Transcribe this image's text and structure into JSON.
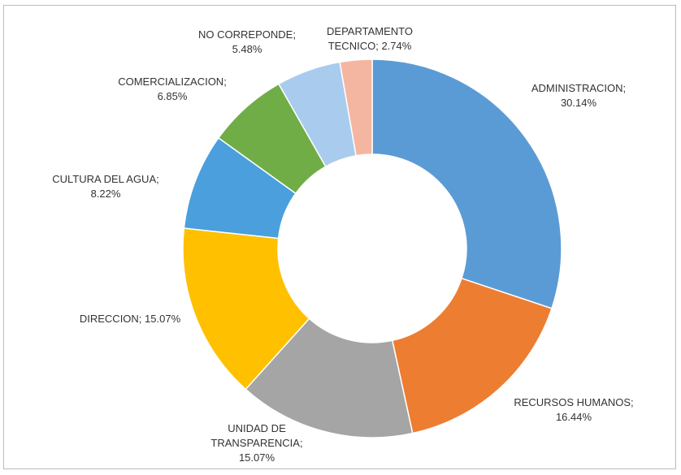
{
  "chart_data": {
    "type": "donut",
    "categories": [
      "ADMINISTRACION;",
      "RECURSOS HUMANOS;",
      "UNIDAD DE TRANSPARENCIA;",
      "DIRECCION;",
      "CULTURA DEL AGUA;",
      "COMERCIALIZACION;",
      "NO CORREPONDE;",
      "DEPARTAMENTO TECNICO;"
    ],
    "values": [
      30.14,
      16.44,
      15.07,
      15.07,
      8.22,
      6.85,
      5.48,
      2.74
    ],
    "value_labels": [
      "30.14%",
      "16.44%",
      "15.07%",
      "15.07%",
      "8.22%",
      "6.85%",
      "5.48%",
      "2.74%"
    ],
    "colors": [
      "#5b9bd5",
      "#ed7d31",
      "#a5a5a5",
      "#ffc000",
      "#4a9fdc",
      "#70ad47",
      "#a9cbee",
      "#f4b6a0"
    ]
  }
}
